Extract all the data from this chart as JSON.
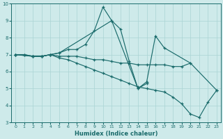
{
  "xlabel": "Humidex (Indice chaleur)",
  "bg_color": "#ceeaea",
  "line_color": "#1a6b6b",
  "grid_color": "#aad4d4",
  "xlim": [
    -0.5,
    23.5
  ],
  "ylim": [
    3,
    10
  ],
  "yticks": [
    3,
    4,
    5,
    6,
    7,
    8,
    9,
    10
  ],
  "xticks": [
    0,
    1,
    2,
    3,
    4,
    5,
    6,
    7,
    8,
    9,
    10,
    11,
    12,
    13,
    14,
    15,
    16,
    17,
    18,
    19,
    20,
    21,
    22,
    23
  ],
  "series": [
    {
      "x": [
        0,
        1,
        2,
        3,
        4,
        5,
        6,
        7,
        8,
        9,
        10,
        11,
        12,
        13,
        14,
        15
      ],
      "y": [
        7.0,
        7.0,
        6.9,
        6.9,
        7.0,
        7.1,
        7.3,
        7.3,
        7.6,
        8.4,
        9.8,
        9.0,
        8.5,
        6.6,
        5.0,
        5.3
      ]
    },
    {
      "x": [
        0,
        1,
        2,
        3,
        4,
        5,
        11,
        14,
        15,
        16,
        17,
        20
      ],
      "y": [
        7.0,
        7.0,
        6.9,
        6.9,
        7.0,
        7.1,
        9.0,
        5.0,
        5.4,
        8.1,
        7.4,
        6.5
      ]
    },
    {
      "x": [
        0,
        2,
        3,
        4,
        5,
        6,
        7,
        8,
        9,
        10,
        11,
        12,
        13,
        14,
        15,
        16,
        17,
        18,
        19,
        20,
        23
      ],
      "y": [
        7.0,
        6.9,
        6.9,
        7.0,
        6.9,
        6.9,
        6.9,
        6.8,
        6.7,
        6.7,
        6.6,
        6.5,
        6.5,
        6.4,
        6.4,
        6.4,
        6.4,
        6.3,
        6.3,
        6.5,
        4.9
      ]
    },
    {
      "x": [
        0,
        2,
        3,
        4,
        5,
        6,
        7,
        8,
        9,
        10,
        11,
        12,
        13,
        14,
        15,
        16,
        17,
        18,
        19,
        20,
        21,
        22,
        23
      ],
      "y": [
        7.0,
        6.9,
        6.9,
        7.0,
        6.8,
        6.7,
        6.5,
        6.3,
        6.1,
        5.9,
        5.7,
        5.5,
        5.3,
        5.1,
        5.0,
        4.9,
        4.8,
        4.5,
        4.1,
        3.5,
        3.3,
        4.2,
        4.9
      ]
    }
  ]
}
